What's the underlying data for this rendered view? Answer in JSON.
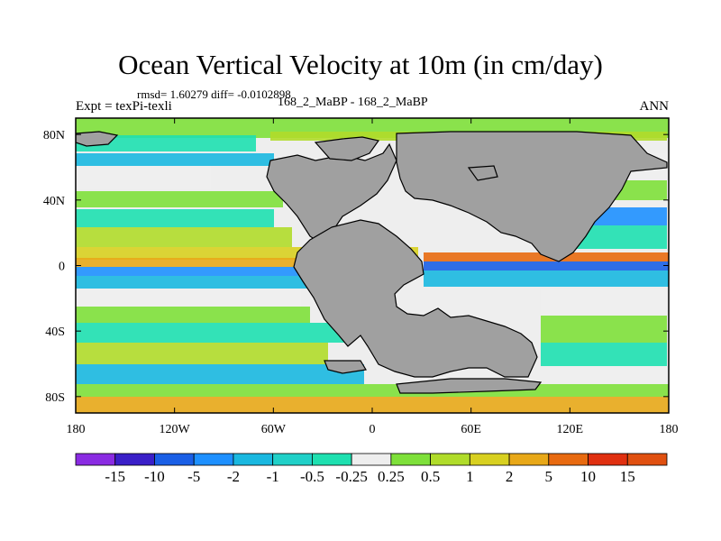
{
  "title": "Ocean Vertical Velocity at 10m (in cm/day)",
  "stats": "rmsd= 1.60279 diff= -0.0102898",
  "experiment": "Expt = texPi-texli",
  "center_label": "168_2_MaBP - 168_2_MaBP",
  "season": "ANN",
  "lon_ticks": [
    "180",
    "120W",
    "60W",
    "0",
    "60E",
    "120E",
    "180"
  ],
  "lat_ticks": [
    "80N",
    "40N",
    "0",
    "40S",
    "80S"
  ],
  "colorbar": {
    "labels": [
      "-15",
      "-10",
      "-5",
      "-2",
      "-1",
      "-0.5",
      "-0.25",
      "0.25",
      "0.5",
      "1",
      "2",
      "5",
      "10",
      "15"
    ],
    "colors": [
      "#8a2be2",
      "#3a1fc8",
      "#1a5fe6",
      "#1e90ff",
      "#1ab8e0",
      "#20d0c8",
      "#1ee0b0",
      "#eeeeee",
      "#7ee03a",
      "#b0dc2a",
      "#d8d020",
      "#e8a818",
      "#e86a10",
      "#e03010",
      "#e05010"
    ]
  },
  "map": {
    "land_color": "#a0a0a0",
    "background_color": "#eeeeee"
  }
}
